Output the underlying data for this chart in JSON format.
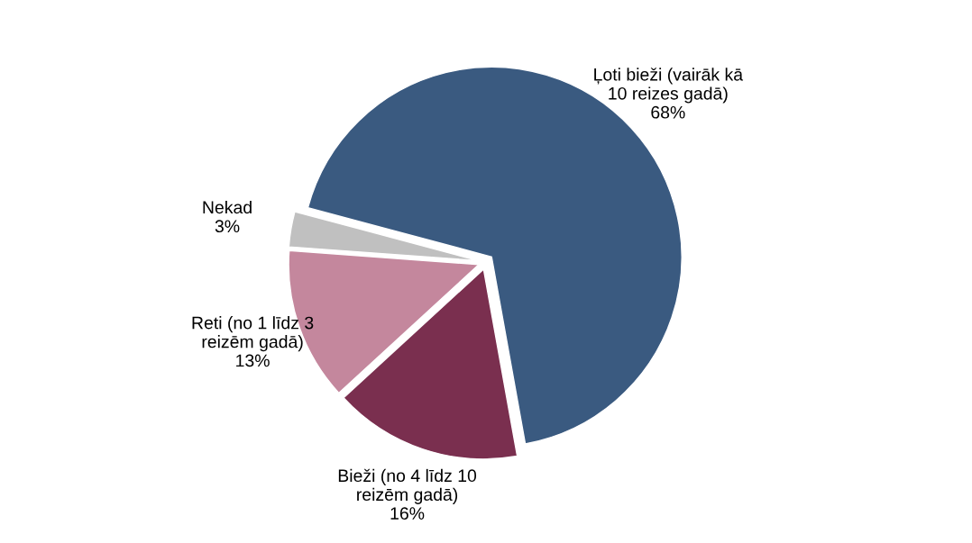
{
  "chart_data": {
    "type": "pie",
    "categories": [
      "Ļoti bieži (vairāk kā\n10 reizes gadā)",
      "Bieži (no 4 līdz 10\nreizēm gadā)",
      "Reti (no 1 līdz 3\nreizēm gadā)",
      "Nekad"
    ],
    "values": [
      68,
      16,
      13,
      3
    ],
    "colors": [
      "#3a5a80",
      "#7a2f4f",
      "#c4879d",
      "#c0c0c0"
    ],
    "value_labels": [
      "68%",
      "16%",
      "13%",
      "3%"
    ],
    "legend": false
  }
}
